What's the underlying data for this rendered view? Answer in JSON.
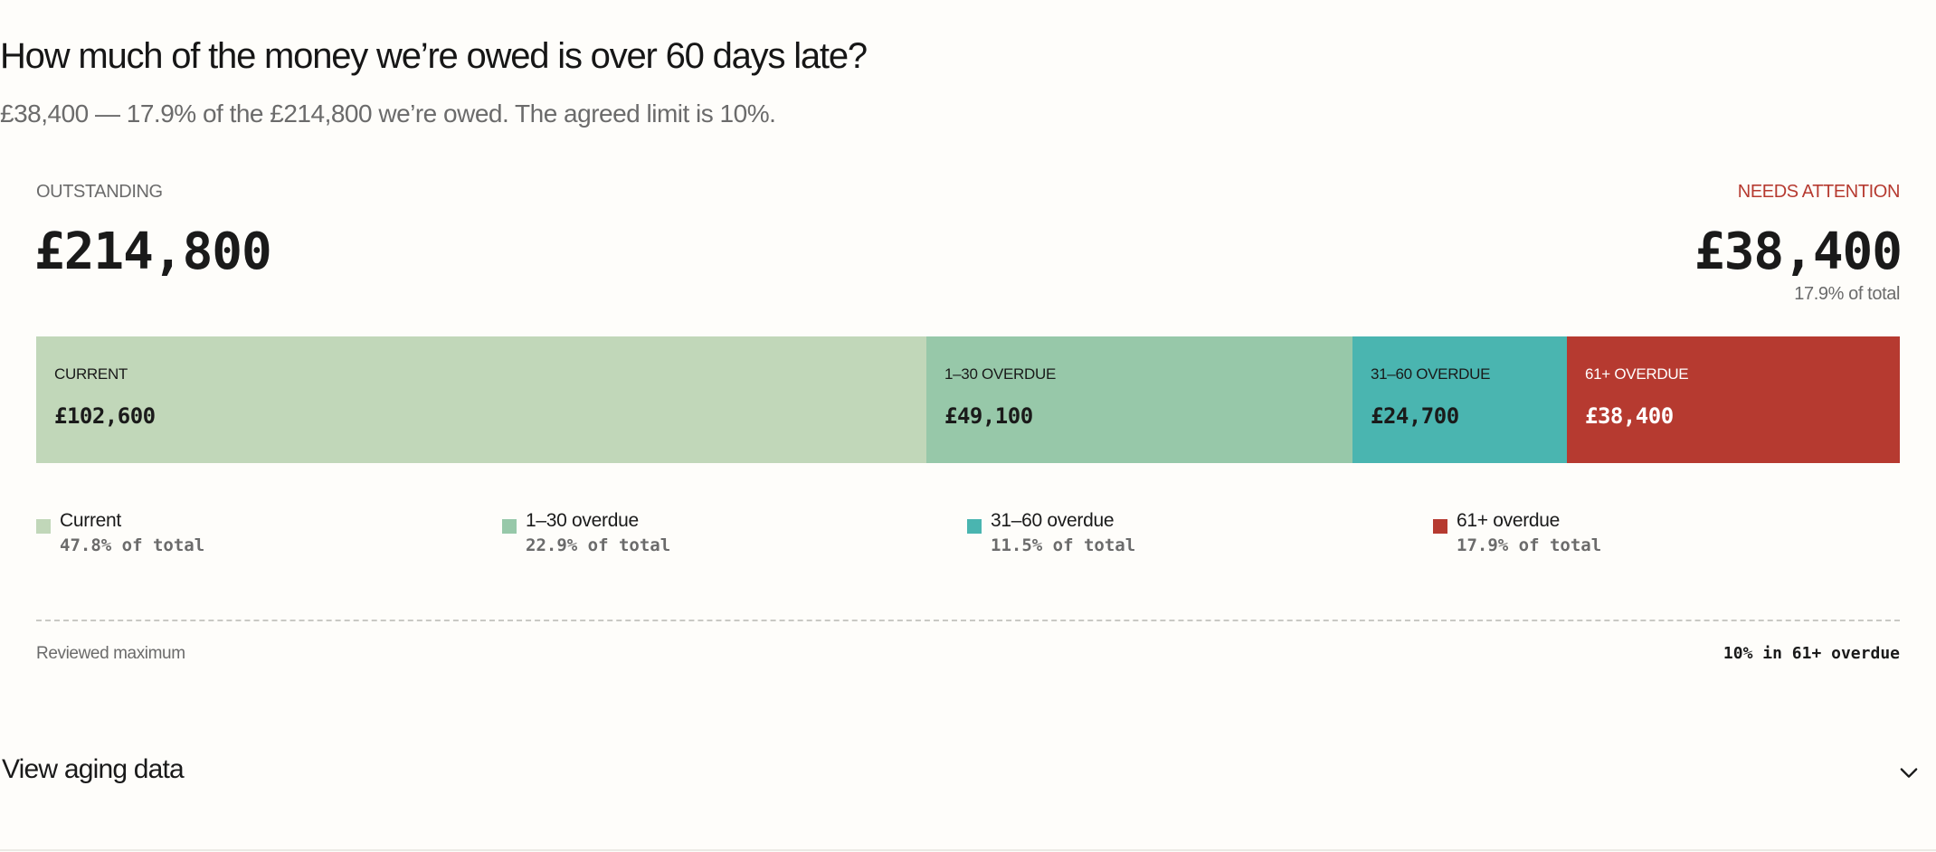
{
  "header": {
    "title": "How much of the money we’re owed is over 60 days late?",
    "subtitle": "£38,400 — 17.9% of the £214,800 we’re owed. The agreed limit is 10%."
  },
  "kpi": {
    "outstanding_label": "OUTSTANDING",
    "outstanding_value": "£214,800",
    "attention_label": "NEEDS ATTENTION",
    "attention_value": "£38,400",
    "attention_share": "17.9% of total"
  },
  "reference": {
    "label": "Reviewed maximum",
    "value": "10% in 61+ overdue"
  },
  "toggle": {
    "label": "View aging data"
  },
  "colors": {
    "current": "#c1d7b9",
    "overdue_1_30": "#97c8a9",
    "overdue_31_60": "#4ab5b0",
    "overdue_61_plus": "#b63a30",
    "attention_text": "#b63a30"
  },
  "chart_data": {
    "type": "bar",
    "orientation": "horizontal-stacked",
    "total": 214800,
    "unit": "£",
    "categories": [
      "Current",
      "1–30 overdue",
      "31–60 overdue",
      "61+ overdue"
    ],
    "segment_labels": [
      "CURRENT",
      "1–30 OVERDUE",
      "31–60 OVERDUE",
      "61+ OVERDUE"
    ],
    "values": [
      102600,
      49100,
      24700,
      38400
    ],
    "value_labels": [
      "£102,600",
      "£49,100",
      "£24,700",
      "£38,400"
    ],
    "shares": [
      "47.8% of total",
      "22.9% of total",
      "11.5% of total",
      "17.9% of total"
    ],
    "segment_colors": [
      "#c1d7b9",
      "#97c8a9",
      "#4ab5b0",
      "#b63a30"
    ],
    "segment_text_colors": [
      "#1a1a1a",
      "#1a1a1a",
      "#1a1a1a",
      "#ffffff"
    ],
    "legend_placement": "bottom",
    "grid": false
  }
}
